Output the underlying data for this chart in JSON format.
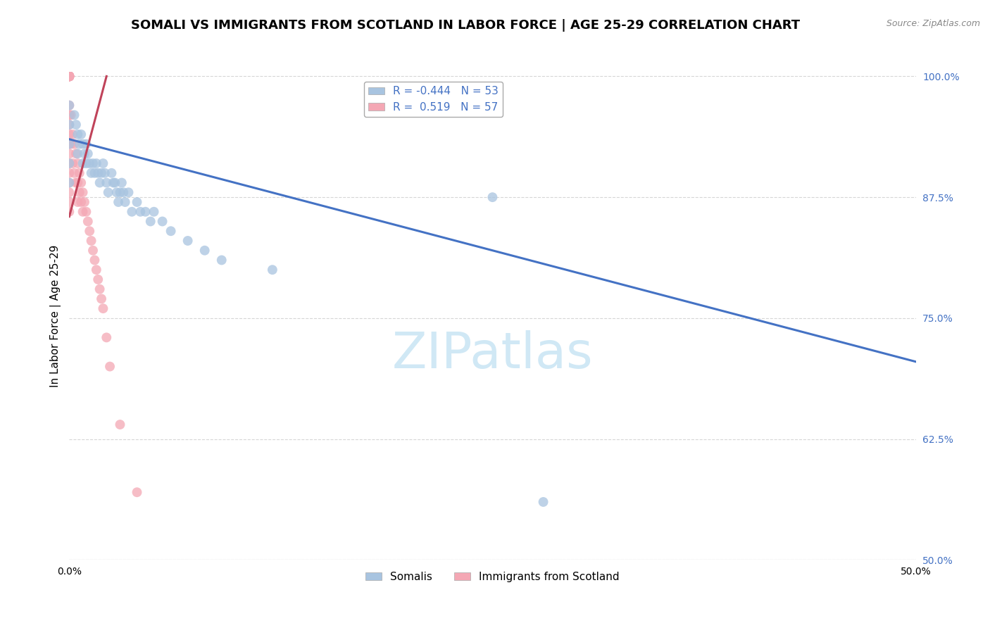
{
  "title": "SOMALI VS IMMIGRANTS FROM SCOTLAND IN LABOR FORCE | AGE 25-29 CORRELATION CHART",
  "source": "Source: ZipAtlas.com",
  "ylabel": "In Labor Force | Age 25-29",
  "xlim": [
    0.0,
    0.5
  ],
  "ylim": [
    0.5,
    1.005
  ],
  "yticks": [
    0.5,
    0.625,
    0.75,
    0.875,
    1.0
  ],
  "ytick_labels": [
    "50.0%",
    "62.5%",
    "75.0%",
    "87.5%",
    "100.0%"
  ],
  "xtick_labels_show": [
    "0.0%",
    "50.0%"
  ],
  "xtick_positions_show": [
    0.0,
    0.5
  ],
  "xtick_minor_positions": [
    0.05,
    0.1,
    0.15,
    0.2,
    0.25,
    0.3,
    0.35,
    0.4,
    0.45
  ],
  "blue_R": -0.444,
  "blue_N": 53,
  "pink_R": 0.519,
  "pink_N": 57,
  "blue_color": "#a8c4e0",
  "pink_color": "#f4a7b4",
  "blue_line_color": "#4472c4",
  "pink_line_color": "#c0435a",
  "legend_color": "#4472c4",
  "watermark": "ZIPatlas",
  "blue_scatter_x": [
    0.0,
    0.0,
    0.0,
    0.0,
    0.0,
    0.003,
    0.004,
    0.005,
    0.005,
    0.006,
    0.007,
    0.008,
    0.008,
    0.009,
    0.01,
    0.01,
    0.011,
    0.012,
    0.013,
    0.014,
    0.015,
    0.016,
    0.017,
    0.018,
    0.019,
    0.02,
    0.021,
    0.022,
    0.023,
    0.025,
    0.026,
    0.027,
    0.028,
    0.029,
    0.03,
    0.031,
    0.032,
    0.033,
    0.035,
    0.037,
    0.04,
    0.042,
    0.045,
    0.048,
    0.05,
    0.055,
    0.06,
    0.07,
    0.08,
    0.09,
    0.12,
    0.25,
    0.28
  ],
  "blue_scatter_y": [
    0.97,
    0.95,
    0.93,
    0.91,
    0.89,
    0.96,
    0.95,
    0.94,
    0.92,
    0.93,
    0.94,
    0.93,
    0.91,
    0.92,
    0.93,
    0.91,
    0.92,
    0.91,
    0.9,
    0.91,
    0.9,
    0.91,
    0.9,
    0.89,
    0.9,
    0.91,
    0.9,
    0.89,
    0.88,
    0.9,
    0.89,
    0.89,
    0.88,
    0.87,
    0.88,
    0.89,
    0.88,
    0.87,
    0.88,
    0.86,
    0.87,
    0.86,
    0.86,
    0.85,
    0.86,
    0.85,
    0.84,
    0.83,
    0.82,
    0.81,
    0.8,
    0.875,
    0.56
  ],
  "pink_scatter_x": [
    0.0,
    0.0,
    0.0,
    0.0,
    0.0,
    0.0,
    0.0,
    0.0,
    0.0,
    0.0,
    0.0,
    0.0,
    0.0,
    0.0,
    0.0,
    0.0,
    0.0,
    0.0,
    0.0,
    0.0,
    0.0,
    0.0,
    0.0,
    0.0,
    0.001,
    0.001,
    0.002,
    0.002,
    0.003,
    0.003,
    0.004,
    0.004,
    0.005,
    0.005,
    0.005,
    0.006,
    0.006,
    0.007,
    0.007,
    0.008,
    0.008,
    0.009,
    0.01,
    0.011,
    0.012,
    0.013,
    0.014,
    0.015,
    0.016,
    0.017,
    0.018,
    0.019,
    0.02,
    0.022,
    0.024,
    0.03,
    0.04
  ],
  "pink_scatter_y": [
    1.0,
    1.0,
    1.0,
    1.0,
    1.0,
    1.0,
    1.0,
    1.0,
    1.0,
    1.0,
    1.0,
    1.0,
    0.97,
    0.96,
    0.95,
    0.94,
    0.93,
    0.92,
    0.91,
    0.9,
    0.89,
    0.88,
    0.87,
    0.86,
    0.96,
    0.93,
    0.94,
    0.91,
    0.93,
    0.9,
    0.92,
    0.89,
    0.91,
    0.89,
    0.87,
    0.9,
    0.88,
    0.89,
    0.87,
    0.88,
    0.86,
    0.87,
    0.86,
    0.85,
    0.84,
    0.83,
    0.82,
    0.81,
    0.8,
    0.79,
    0.78,
    0.77,
    0.76,
    0.73,
    0.7,
    0.64,
    0.57
  ],
  "blue_line_x": [
    0.0,
    0.5
  ],
  "blue_line_y": [
    0.935,
    0.705
  ],
  "pink_line_x": [
    0.0,
    0.022
  ],
  "pink_line_y": [
    0.855,
    1.0
  ],
  "title_fontsize": 13,
  "axis_label_fontsize": 11,
  "tick_fontsize": 10,
  "watermark_fontsize": 52,
  "watermark_color": "#d0e8f5",
  "background_color": "#ffffff",
  "grid_color": "#cccccc"
}
